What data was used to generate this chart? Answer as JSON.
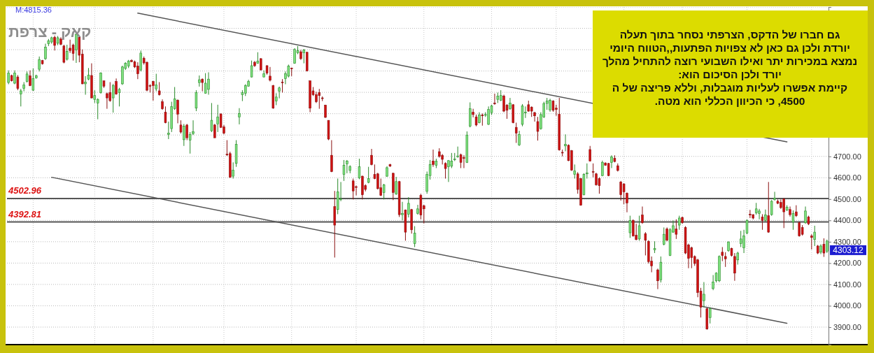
{
  "chart_data": {
    "type": "candlestick",
    "title": "קאק - צרפת",
    "categories": [
      null,
      null,
      null,
      null,
      null,
      null,
      null,
      null,
      null,
      null,
      null,
      null,
      null,
      null,
      null,
      null,
      null,
      null,
      null,
      null,
      null,
      null,
      null,
      null,
      null,
      null,
      null,
      null,
      null,
      null,
      null,
      null,
      null,
      null,
      null,
      null,
      null,
      null,
      null,
      null,
      null,
      null,
      null,
      null,
      null,
      null,
      null,
      null,
      null,
      null,
      null,
      null,
      null,
      null,
      null,
      null,
      null,
      null,
      null,
      null,
      null,
      null,
      null,
      null,
      null,
      null,
      null,
      null,
      null,
      null,
      null,
      null,
      null,
      null,
      null,
      null,
      null,
      null,
      null,
      null,
      null,
      null,
      null,
      null,
      null,
      null,
      null,
      null,
      null,
      null,
      null,
      null,
      null,
      null,
      null,
      null,
      null,
      null,
      null,
      null,
      null,
      null,
      null,
      null,
      null,
      null,
      null,
      null,
      null,
      null,
      null,
      null,
      null,
      null,
      null,
      null,
      null,
      null,
      null,
      null,
      null,
      null,
      null,
      null,
      null,
      null,
      null,
      null,
      null,
      null,
      null,
      null,
      null,
      null,
      null,
      null,
      null,
      null,
      null,
      null,
      null,
      null,
      null,
      null,
      null,
      null,
      null,
      null,
      null,
      null,
      null,
      null,
      null,
      null,
      null,
      null,
      null,
      null,
      null,
      null,
      null,
      null,
      null,
      null,
      null,
      null,
      null,
      null,
      null,
      null,
      null,
      null,
      null,
      null,
      null,
      null,
      null,
      null,
      null,
      null,
      null,
      null,
      null,
      null,
      null,
      null,
      null,
      null,
      null,
      null,
      null,
      null,
      null,
      null,
      null,
      null,
      null,
      null,
      null,
      null,
      null,
      null,
      null,
      null,
      null,
      null,
      null,
      null,
      null,
      null,
      null,
      null,
      null,
      null,
      null,
      null,
      null,
      null,
      null,
      null,
      null,
      null,
      null,
      null,
      null,
      null,
      null,
      null,
      null,
      null,
      null,
      null,
      null,
      null,
      null,
      null,
      null,
      null,
      null,
      null,
      null,
      null,
      null,
      null,
      null,
      null,
      null,
      null,
      null,
      null,
      null,
      null,
      null,
      null,
      null,
      null,
      null,
      null,
      null,
      null,
      null,
      null,
      null,
      null,
      null,
      null,
      null
    ],
    "ohlc": [
      [
        5046,
        5103,
        5038,
        5090
      ],
      [
        5079,
        5083,
        5051,
        5054
      ],
      [
        5043,
        5103,
        5038,
        5090
      ],
      [
        5072,
        5081,
        5010,
        5018
      ],
      [
        4992,
        5016,
        4934,
        5007
      ],
      [
        5018,
        5048,
        5005,
        5035
      ],
      [
        5051,
        5098,
        5046,
        5086
      ],
      [
        5077,
        5103,
        5029,
        5032
      ],
      [
        5010,
        5112,
        5007,
        5065
      ],
      [
        5067,
        5083,
        5064,
        5078
      ],
      [
        5108,
        5168,
        5098,
        5154
      ],
      [
        5149,
        5152,
        5130,
        5134
      ],
      [
        5158,
        5228,
        5152,
        5212
      ],
      [
        5228,
        5250,
        5217,
        5242
      ],
      [
        5236,
        5261,
        5228,
        5256
      ],
      [
        5258,
        5266,
        5196,
        5220
      ],
      [
        5230,
        5264,
        5221,
        5256
      ],
      [
        5250,
        5258,
        5221,
        5225
      ],
      [
        5217,
        5223,
        5136,
        5141
      ],
      [
        5155,
        5223,
        5149,
        5192
      ],
      [
        5207,
        5247,
        5185,
        5196
      ],
      [
        5221,
        5228,
        5149,
        5182
      ],
      [
        5199,
        5277,
        5138,
        5272
      ],
      [
        5258,
        5261,
        5141,
        5174
      ],
      [
        5179,
        5201,
        5038,
        5040
      ],
      [
        5040,
        5076,
        4989,
        5048
      ],
      [
        5062,
        5114,
        5057,
        5081
      ],
      [
        5079,
        5136,
        4972,
        4974
      ],
      [
        4967,
        5010,
        4950,
        4985
      ],
      [
        4950,
        4972,
        4874,
        4967
      ],
      [
        4999,
        5094,
        4994,
        5090
      ],
      [
        5054,
        5054,
        5021,
        5029
      ],
      [
        4994,
        4999,
        4923,
        4974
      ],
      [
        4999,
        5048,
        4956,
        4961
      ],
      [
        4974,
        5040,
        4905,
        5032
      ],
      [
        5051,
        5065,
        4989,
        4992
      ],
      [
        4999,
        5021,
        4934,
        5014
      ],
      [
        5040,
        5125,
        5035,
        5119
      ],
      [
        5112,
        5141,
        5105,
        5136
      ],
      [
        5123,
        5152,
        5114,
        5147
      ],
      [
        5149,
        5155,
        5141,
        5144
      ],
      [
        5143,
        5149,
        5114,
        5119
      ],
      [
        5123,
        5141,
        5062,
        5087
      ],
      [
        5105,
        5196,
        5098,
        5184
      ],
      [
        5160,
        5168,
        5130,
        5138
      ],
      [
        5141,
        5144,
        5005,
        5010
      ],
      [
        5032,
        5038,
        4999,
        5029
      ],
      [
        5051,
        5054,
        4961,
        5032
      ],
      [
        5016,
        5087,
        5005,
        5035
      ],
      [
        5007,
        5048,
        4985,
        4989
      ],
      [
        4956,
        4967,
        4918,
        4923
      ],
      [
        4907,
        4934,
        4855,
        4858
      ],
      [
        4803,
        4863,
        4781,
        4809
      ],
      [
        4830,
        4956,
        4814,
        4934
      ],
      [
        4923,
        5025,
        4918,
        4970
      ],
      [
        4963,
        4967,
        4855,
        4898
      ],
      [
        4847,
        4869,
        4807,
        4814
      ],
      [
        4778,
        4852,
        4749,
        4841
      ],
      [
        4847,
        4852,
        4776,
        4787
      ],
      [
        4776,
        4814,
        4713,
        4803
      ],
      [
        4807,
        4869,
        4800,
        4816
      ],
      [
        4926,
        5010,
        4912,
        4999
      ],
      [
        5046,
        5079,
        5027,
        5059
      ],
      [
        5062,
        5065,
        5005,
        5046
      ],
      [
        4996,
        5090,
        4994,
        5043
      ],
      [
        5014,
        5094,
        4989,
        5062
      ],
      [
        4820,
        4950,
        4814,
        4869
      ],
      [
        4847,
        4852,
        4787,
        4787
      ],
      [
        4852,
        4942,
        4814,
        4885
      ],
      [
        4899,
        4901,
        4833,
        4836
      ],
      [
        4838,
        4847,
        4803,
        4809
      ],
      [
        4711,
        4776,
        4702,
        4707
      ],
      [
        4713,
        4722,
        4599,
        4602
      ],
      [
        4607,
        4672,
        4596,
        4636
      ],
      [
        4667,
        4776,
        4651,
        4756
      ],
      [
        4885,
        4926,
        4850,
        4901
      ],
      [
        4989,
        5010,
        4959,
        4999
      ],
      [
        4996,
        5038,
        4983,
        5032
      ],
      [
        5029,
        5059,
        5027,
        5051
      ],
      [
        5072,
        5149,
        5070,
        5125
      ],
      [
        5141,
        5147,
        5119,
        5125
      ],
      [
        5136,
        5188,
        5134,
        5147
      ],
      [
        5158,
        5160,
        5103,
        5105
      ],
      [
        5072,
        5103,
        5070,
        5087
      ],
      [
        5125,
        5127,
        5083,
        5090
      ],
      [
        5076,
        5119,
        5051,
        5057
      ],
      [
        5032,
        5035,
        4923,
        4926
      ],
      [
        4959,
        4996,
        4940,
        4978
      ],
      [
        5005,
        5027,
        4972,
        5021
      ],
      [
        5048,
        5062,
        4999,
        5046
      ],
      [
        5065,
        5098,
        5038,
        5087
      ],
      [
        5076,
        5130,
        5070,
        5123
      ],
      [
        5114,
        5116,
        5076,
        5112
      ],
      [
        5136,
        5207,
        5134,
        5201
      ],
      [
        5185,
        5217,
        5179,
        5196
      ],
      [
        5190,
        5199,
        5152,
        5158
      ],
      [
        5185,
        5203,
        5136,
        5199
      ],
      [
        5188,
        5190,
        5098,
        5101
      ],
      [
        5054,
        5054,
        4907,
        4926
      ],
      [
        5007,
        5025,
        4983,
        4989
      ],
      [
        4989,
        5003,
        4950,
        4956
      ],
      [
        4999,
        5016,
        4923,
        4985
      ],
      [
        4974,
        4981,
        4959,
        4972
      ],
      [
        4940,
        4942,
        4880,
        4883
      ],
      [
        4869,
        4869,
        4776,
        4781
      ],
      [
        4705,
        4776,
        4626,
        4629
      ],
      [
        4465,
        4538,
        4226,
        4378
      ],
      [
        4451,
        4596,
        4429,
        4534
      ],
      [
        4498,
        4580,
        4490,
        4501
      ],
      [
        4615,
        4683,
        4585,
        4658
      ],
      [
        4665,
        4683,
        4621,
        4678
      ],
      [
        4634,
        4658,
        4621,
        4653
      ],
      [
        4585,
        4596,
        4498,
        4538
      ],
      [
        4558,
        4563,
        4517,
        4555
      ],
      [
        4599,
        4689,
        4593,
        4651
      ],
      [
        4607,
        4610,
        4498,
        4520
      ],
      [
        4563,
        4569,
        4536,
        4545
      ],
      [
        4578,
        4651,
        4574,
        4596
      ],
      [
        4705,
        4735,
        4658,
        4662
      ],
      [
        4615,
        4662,
        4593,
        4596
      ],
      [
        4618,
        4623,
        4545,
        4549
      ],
      [
        4553,
        4596,
        4514,
        4517
      ],
      [
        4531,
        4571,
        4498,
        4567
      ],
      [
        4607,
        4654,
        4604,
        4647
      ],
      [
        4662,
        4665,
        4651,
        4654
      ],
      [
        4621,
        4623,
        4495,
        4531
      ],
      [
        4523,
        4604,
        4520,
        4582
      ],
      [
        4582,
        4585,
        4416,
        4427
      ],
      [
        4427,
        4487,
        4400,
        4433
      ],
      [
        4449,
        4451,
        4305,
        4345
      ],
      [
        4429,
        4509,
        4414,
        4480
      ],
      [
        4451,
        4454,
        4338,
        4356
      ],
      [
        4291,
        4373,
        4275,
        4340
      ],
      [
        4433,
        4473,
        4427,
        4454
      ],
      [
        4517,
        4525,
        4405,
        4425
      ],
      [
        4469,
        4473,
        4386,
        4454
      ],
      [
        4536,
        4629,
        4525,
        4615
      ],
      [
        4610,
        4683,
        4591,
        4662
      ],
      [
        4678,
        4732,
        4651,
        4662
      ],
      [
        4658,
        4689,
        4645,
        4678
      ],
      [
        4722,
        4738,
        4694,
        4700
      ],
      [
        4705,
        4711,
        4662,
        4686
      ],
      [
        4667,
        4672,
        4596,
        4643
      ],
      [
        4651,
        4683,
        4580,
        4680
      ],
      [
        4654,
        4716,
        4645,
        4678
      ],
      [
        4684,
        4716,
        4678,
        4687
      ],
      [
        4698,
        4746,
        4694,
        4702
      ],
      [
        4708,
        4713,
        4645,
        4672
      ],
      [
        4694,
        4705,
        4645,
        4691
      ],
      [
        4672,
        4817,
        4669,
        4800
      ],
      [
        4841,
        4953,
        4836,
        4923
      ],
      [
        4907,
        4923,
        4883,
        4896
      ],
      [
        4885,
        4896,
        4841,
        4847
      ],
      [
        4858,
        4907,
        4855,
        4894
      ],
      [
        4894,
        4901,
        4844,
        4890
      ],
      [
        4894,
        4907,
        4885,
        4896
      ],
      [
        4850,
        4934,
        4847,
        4920
      ],
      [
        4905,
        4942,
        4894,
        4937
      ],
      [
        4950,
        4994,
        4942,
        4948
      ],
      [
        4967,
        4999,
        4950,
        4983
      ],
      [
        4963,
        5010,
        4959,
        4985
      ],
      [
        4983,
        4989,
        4907,
        4912
      ],
      [
        4940,
        4945,
        4876,
        4916
      ],
      [
        4923,
        4974,
        4918,
        4950
      ],
      [
        4942,
        4945,
        4855,
        4858
      ],
      [
        4836,
        4858,
        4763,
        4809
      ],
      [
        4754,
        4820,
        4749,
        4803
      ],
      [
        4850,
        4945,
        4841,
        4937
      ],
      [
        4905,
        4934,
        4880,
        4907
      ],
      [
        4942,
        4961,
        4909,
        4912
      ],
      [
        4931,
        4934,
        4885,
        4912
      ],
      [
        4905,
        4909,
        4863,
        4890
      ],
      [
        4863,
        4885,
        4774,
        4817
      ],
      [
        4830,
        4907,
        4825,
        4896
      ],
      [
        4885,
        4956,
        4880,
        4948
      ],
      [
        4948,
        4974,
        4918,
        4959
      ],
      [
        4918,
        4970,
        4909,
        4963
      ],
      [
        4959,
        4963,
        4909,
        4916
      ],
      [
        4926,
        4942,
        4890,
        4920
      ],
      [
        4898,
        4974,
        4727,
        4730
      ],
      [
        4719,
        4732,
        4700,
        4716
      ],
      [
        4749,
        4803,
        4724,
        4756
      ],
      [
        4752,
        4756,
        4678,
        4680
      ],
      [
        4727,
        4730,
        4632,
        4636
      ],
      [
        4615,
        4662,
        4596,
        4632
      ],
      [
        4618,
        4626,
        4525,
        4545
      ],
      [
        4596,
        4599,
        4469,
        4471
      ],
      [
        4520,
        4621,
        4517,
        4615
      ],
      [
        4618,
        4667,
        4596,
        4623
      ],
      [
        4732,
        4749,
        4676,
        4678
      ],
      [
        4629,
        4667,
        4602,
        4626
      ],
      [
        4618,
        4623,
        4563,
        4567
      ],
      [
        4596,
        4602,
        4525,
        4563
      ],
      [
        4610,
        4680,
        4607,
        4672
      ],
      [
        4669,
        4672,
        4656,
        4658
      ],
      [
        4667,
        4669,
        4607,
        4610
      ],
      [
        4672,
        4705,
        4645,
        4698
      ],
      [
        4691,
        4705,
        4672,
        4676
      ],
      [
        4656,
        4667,
        4629,
        4634
      ],
      [
        4580,
        4585,
        4493,
        4520
      ],
      [
        4571,
        4574,
        4476,
        4534
      ],
      [
        4527,
        4531,
        4438,
        4482
      ],
      [
        4342,
        4422,
        4318,
        4400
      ],
      [
        4400,
        4405,
        4324,
        4327
      ],
      [
        4331,
        4384,
        4307,
        4310
      ],
      [
        4313,
        4422,
        4305,
        4375
      ],
      [
        4425,
        4465,
        4384,
        4389
      ],
      [
        4338,
        4345,
        4236,
        4307
      ],
      [
        4302,
        4307,
        4198,
        4207
      ],
      [
        4209,
        4231,
        4157,
        4187
      ],
      [
        4262,
        4302,
        4247,
        4269
      ],
      [
        4168,
        4174,
        4078,
        4117
      ],
      [
        4122,
        4231,
        4109,
        4204
      ],
      [
        4288,
        4367,
        4283,
        4335
      ],
      [
        4360,
        4367,
        4302,
        4307
      ],
      [
        4236,
        4364,
        4233,
        4356
      ],
      [
        4345,
        4400,
        4342,
        4375
      ],
      [
        4360,
        4405,
        4313,
        4335
      ],
      [
        4378,
        4422,
        4356,
        4411
      ],
      [
        4414,
        4418,
        4384,
        4389
      ],
      [
        4367,
        4373,
        4242,
        4247
      ],
      [
        4285,
        4291,
        4176,
        4222
      ],
      [
        4272,
        4277,
        4176,
        4226
      ],
      [
        4231,
        4236,
        4187,
        4198
      ],
      [
        4215,
        4220,
        4040,
        4062
      ],
      [
        4068,
        4084,
        3945,
        3993
      ],
      [
        4024,
        4111,
        3993,
        4054
      ],
      [
        3986,
        3991,
        3888,
        3891
      ],
      [
        3945,
        3993,
        3917,
        3986
      ],
      [
        4081,
        4144,
        4073,
        4111
      ],
      [
        4117,
        4157,
        4109,
        4153
      ],
      [
        4117,
        4236,
        4111,
        4231
      ],
      [
        4251,
        4275,
        4209,
        4236
      ],
      [
        4231,
        4251,
        4182,
        4220
      ],
      [
        4258,
        4302,
        4253,
        4299
      ],
      [
        4269,
        4272,
        4231,
        4236
      ],
      [
        4231,
        4247,
        4117,
        4153
      ],
      [
        4215,
        4253,
        4193,
        4247
      ],
      [
        4291,
        4351,
        4275,
        4313
      ],
      [
        4272,
        4356,
        4247,
        4327
      ],
      [
        4340,
        4405,
        4335,
        4400
      ],
      [
        4429,
        4449,
        4411,
        4425
      ],
      [
        4427,
        4429,
        4405,
        4411
      ],
      [
        4436,
        4482,
        4427,
        4454
      ],
      [
        4433,
        4454,
        4405,
        4444
      ],
      [
        4416,
        4429,
        4356,
        4400
      ],
      [
        4400,
        4451,
        4395,
        4425
      ],
      [
        4422,
        4580,
        4342,
        4345
      ],
      [
        4427,
        4495,
        4422,
        4490
      ],
      [
        4498,
        4534,
        4493,
        4504
      ],
      [
        4490,
        4498,
        4476,
        4480
      ],
      [
        4484,
        4498,
        4454,
        4460
      ],
      [
        4501,
        4504,
        4364,
        4440
      ],
      [
        4449,
        4471,
        4444,
        4462
      ],
      [
        4451,
        4465,
        4418,
        4427
      ],
      [
        4392,
        4447,
        4356,
        4433
      ],
      [
        4440,
        4471,
        4416,
        4422
      ],
      [
        4389,
        4395,
        4324,
        4327
      ],
      [
        4367,
        4378,
        4329,
        4335
      ],
      [
        4389,
        4465,
        4384,
        4444
      ],
      [
        4416,
        4422,
        4378,
        4384
      ],
      [
        4327,
        4335,
        4264,
        4320
      ],
      [
        4310,
        4375,
        4280,
        4345
      ],
      [
        4280,
        4285,
        4242,
        4247
      ],
      [
        4251,
        4288,
        4242,
        4280
      ],
      [
        4288,
        4316,
        4229,
        4247
      ],
      [
        4255,
        4310,
        4247,
        4303.12
      ]
    ],
    "series": [
      {
        "type": "line",
        "values": [
          null,
          null,
          null,
          null,
          null,
          null,
          null,
          null,
          null,
          null,
          null,
          null,
          null,
          null,
          null,
          null,
          null,
          null,
          null,
          null,
          null,
          null,
          null,
          null,
          null,
          null,
          null,
          null,
          null,
          null,
          null,
          null,
          null,
          null,
          null,
          null,
          null,
          null,
          null,
          null,
          null,
          null,
          5371,
          null,
          null,
          null,
          null,
          null,
          null,
          null,
          null,
          null,
          null,
          null,
          null,
          null,
          null,
          null,
          null,
          null,
          null,
          null,
          null,
          null,
          null,
          null,
          null,
          null,
          null,
          null,
          null,
          null,
          null,
          null,
          null,
          null,
          null,
          null,
          null,
          null,
          null,
          null,
          null,
          null,
          null,
          null,
          null,
          null,
          null,
          null,
          null,
          null,
          null,
          null,
          null,
          null,
          null,
          null,
          null,
          null,
          null,
          null,
          null,
          null,
          null,
          null,
          null,
          null,
          null,
          null,
          null,
          null,
          null,
          null,
          null,
          null,
          null,
          null,
          null,
          null,
          null,
          null,
          null,
          null,
          null,
          null,
          null,
          null,
          null,
          null,
          null,
          null,
          null,
          null,
          null,
          null,
          null,
          null,
          null,
          null,
          null,
          null,
          null,
          null,
          null,
          null,
          null,
          null,
          null,
          null,
          null,
          null,
          null,
          null,
          null,
          null,
          null,
          null,
          null,
          null,
          null,
          null,
          null,
          null,
          null,
          null,
          null,
          null,
          null,
          null,
          null,
          null,
          null,
          null,
          null,
          null,
          null,
          null,
          null,
          null,
          null,
          null,
          null,
          null,
          null,
          null,
          null,
          null,
          null,
          null,
          null,
          null,
          null,
          null,
          null,
          null,
          null,
          null,
          null,
          null,
          null,
          null,
          null,
          null,
          null,
          null,
          null,
          null,
          null,
          null,
          null,
          null,
          null,
          null,
          null,
          null,
          null,
          null,
          null,
          null,
          null,
          null,
          null,
          null,
          null,
          null,
          null,
          null,
          null,
          null,
          null,
          null,
          null,
          null,
          null,
          null,
          null,
          null,
          null,
          null,
          null,
          null,
          null,
          null,
          null,
          null,
          null,
          null,
          null,
          null,
          null,
          null,
          null,
          4768,
          null,
          null,
          null,
          null,
          null,
          null,
          null,
          null,
          null,
          null,
          null,
          null,
          null
        ],
        "color": "#555555"
      },
      {
        "type": "line",
        "values": [
          null,
          null,
          null,
          null,
          null,
          null,
          null,
          null,
          null,
          null,
          null,
          null,
          null,
          null,
          4602,
          null,
          null,
          null,
          null,
          null,
          null,
          null,
          null,
          null,
          null,
          null,
          null,
          null,
          null,
          null,
          null,
          null,
          null,
          null,
          null,
          null,
          null,
          null,
          null,
          null,
          null,
          null,
          null,
          null,
          null,
          null,
          null,
          null,
          null,
          null,
          null,
          null,
          null,
          null,
          null,
          null,
          null,
          null,
          null,
          null,
          null,
          null,
          null,
          null,
          null,
          null,
          null,
          null,
          null,
          null,
          null,
          null,
          null,
          null,
          null,
          null,
          null,
          null,
          null,
          null,
          null,
          null,
          null,
          null,
          null,
          null,
          null,
          null,
          null,
          null,
          null,
          null,
          null,
          null,
          null,
          null,
          null,
          null,
          null,
          null,
          null,
          null,
          null,
          null,
          null,
          null,
          null,
          null,
          null,
          null,
          null,
          null,
          null,
          null,
          null,
          null,
          null,
          null,
          null,
          null,
          null,
          null,
          null,
          null,
          null,
          null,
          null,
          null,
          null,
          null,
          null,
          null,
          null,
          null,
          null,
          null,
          null,
          null,
          null,
          null,
          null,
          null,
          null,
          null,
          null,
          null,
          null,
          null,
          null,
          null,
          null,
          null,
          null,
          null,
          null,
          null,
          null,
          null,
          null,
          null,
          null,
          null,
          null,
          null,
          null,
          null,
          null,
          null,
          null,
          null,
          null,
          null,
          null,
          null,
          null,
          null,
          null,
          null,
          null,
          null,
          null,
          null,
          null,
          null,
          null,
          null,
          null,
          null,
          null,
          null,
          null,
          null,
          null,
          null,
          null,
          null,
          null,
          null,
          null,
          null,
          null,
          null,
          null,
          null,
          null,
          null,
          null,
          null,
          null,
          null,
          null,
          null,
          null,
          null,
          null,
          null,
          null,
          null,
          null,
          null,
          null,
          null,
          null,
          null,
          null,
          null,
          null,
          null,
          null,
          null,
          null,
          null,
          null,
          null,
          null,
          null,
          null,
          null,
          null,
          null,
          null,
          null,
          null,
          null,
          null,
          null,
          null,
          null,
          null,
          null,
          null,
          null,
          null,
          3918,
          null,
          null,
          null,
          null,
          null,
          null,
          null,
          null,
          null,
          null,
          null,
          null,
          null
        ],
        "color": "#555555"
      }
    ],
    "ref_lines": [
      {
        "axis": "y",
        "value": 4502.96,
        "label": "4502.96",
        "color": "#555555"
      },
      {
        "axis": "y",
        "value": 4392.81,
        "label": "4392.81",
        "color": "#555555"
      }
    ],
    "annotations": [
      "M:4815.36",
      "גם חברו של הדקס, הצרפתי נסחר בתוך תעלה\nיורדת ולכן גם כאן לא צפויות הפתעות,,הטווח היומי\nנמצא במכירות יתר ואילו השבועי רוצה להתחיל מהלך\nיורד ולכן הסיכום הוא:\nקיימת אפשרו לעליות מוגבלות, וללא פריצה של ה\n4500, כי הכיוון הכללי הוא מטה.",
      "4303.12"
    ],
    "ylim": [
      3818,
      5400
    ],
    "yticks": [
      {
        "value": 3900,
        "label": "3900.00"
      },
      {
        "value": 4000,
        "label": "4000.00"
      },
      {
        "value": 4100,
        "label": "4100.00"
      },
      {
        "value": 4200,
        "label": "4200.00"
      },
      {
        "value": 4300,
        "label": "4300.00"
      },
      {
        "value": 4400,
        "label": "4400.00"
      },
      {
        "value": 4500,
        "label": "4500.00"
      },
      {
        "value": 4600,
        "label": "4600.00"
      },
      {
        "value": 4700,
        "label": "4700.00"
      },
      {
        "value": 4800,
        "label": null
      },
      {
        "value": 4900,
        "label": null
      },
      {
        "value": 5000,
        "label": null
      },
      {
        "value": 5100,
        "label": null
      },
      {
        "value": 5200,
        "label": null
      },
      {
        "value": 5300,
        "label": null
      },
      {
        "value": 5400,
        "label": null
      }
    ],
    "tick_labels": "y",
    "grid": true
  }
}
